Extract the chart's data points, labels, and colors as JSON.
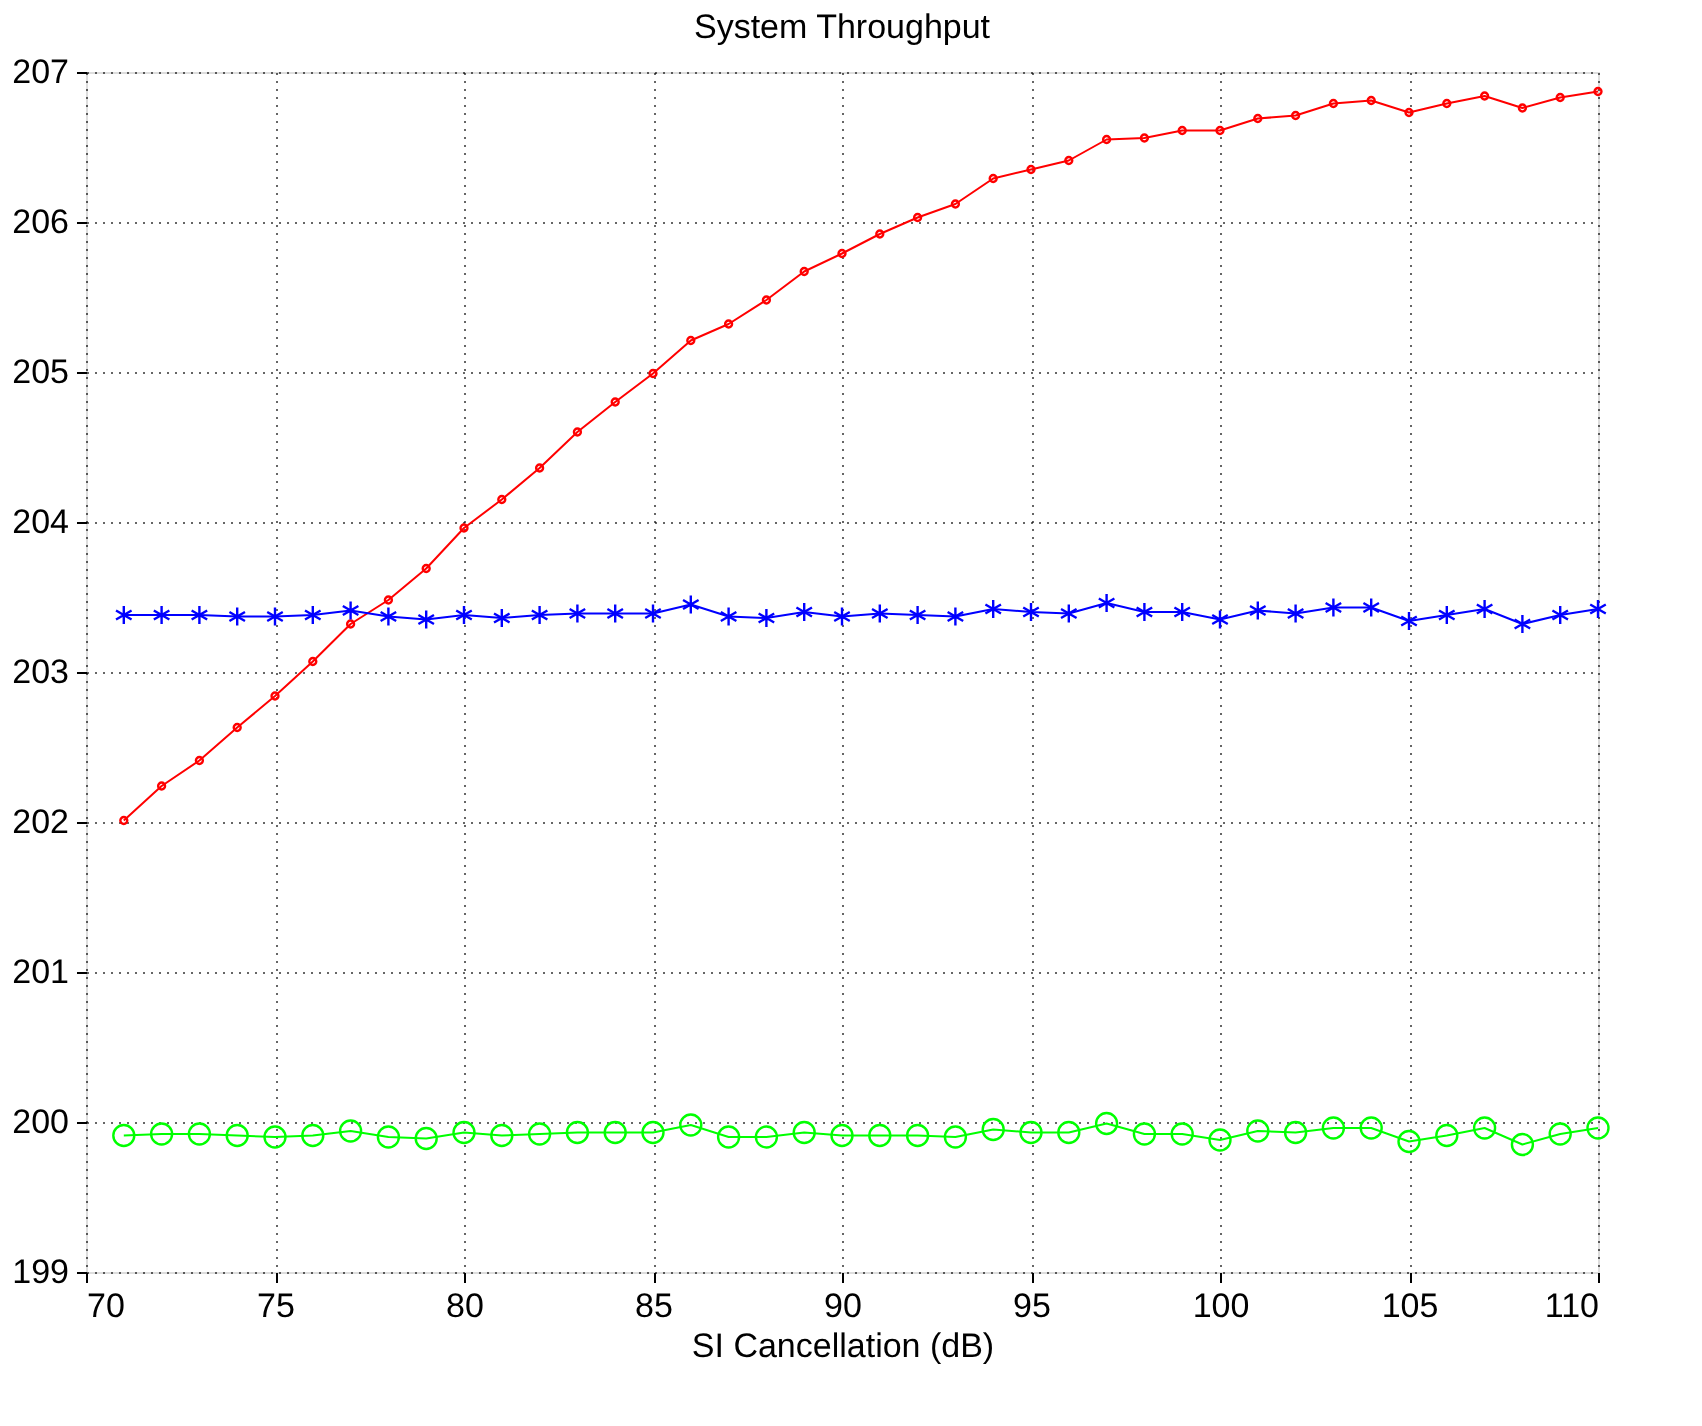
{
  "chart_data": {
    "type": "line",
    "title": "System Throughput",
    "xlabel": "SI Cancellation (dB)",
    "x": [
      71,
      72,
      73,
      74,
      75,
      76,
      77,
      78,
      79,
      80,
      81,
      82,
      83,
      84,
      85,
      86,
      87,
      88,
      89,
      90,
      91,
      92,
      93,
      94,
      95,
      96,
      97,
      98,
      99,
      100,
      101,
      102,
      103,
      104,
      105,
      106,
      107,
      108,
      109,
      110
    ],
    "series": [
      {
        "color": "#ff0000",
        "marker": "circle",
        "values": [
          202.01,
          202.24,
          202.41,
          202.63,
          202.84,
          203.07,
          203.32,
          203.48,
          203.69,
          203.96,
          204.15,
          204.36,
          204.6,
          204.8,
          204.99,
          205.21,
          205.32,
          205.48,
          205.67,
          205.79,
          205.92,
          206.03,
          206.12,
          206.29,
          206.35,
          206.41,
          206.55,
          206.56,
          206.61,
          206.61,
          206.69,
          206.71,
          206.79,
          206.81,
          206.73,
          206.79,
          206.84,
          206.76,
          206.83,
          206.87
        ]
      },
      {
        "color": "#0000ff",
        "marker": "cross",
        "values": [
          203.38,
          203.38,
          203.38,
          203.37,
          203.37,
          203.38,
          203.41,
          203.37,
          203.35,
          203.38,
          203.36,
          203.38,
          203.39,
          203.39,
          203.39,
          203.45,
          203.37,
          203.36,
          203.4,
          203.37,
          203.39,
          203.38,
          203.37,
          203.42,
          203.4,
          203.39,
          203.46,
          203.4,
          203.4,
          203.35,
          203.41,
          203.39,
          203.43,
          203.43,
          203.34,
          203.38,
          203.42,
          203.32,
          203.38,
          203.42
        ]
      },
      {
        "color": "#00ff00",
        "marker": "circle",
        "values": [
          199.91,
          199.92,
          199.92,
          199.91,
          199.9,
          199.91,
          199.94,
          199.9,
          199.89,
          199.93,
          199.91,
          199.92,
          199.93,
          199.93,
          199.93,
          199.98,
          199.9,
          199.9,
          199.93,
          199.91,
          199.91,
          199.91,
          199.9,
          199.95,
          199.93,
          199.93,
          199.99,
          199.92,
          199.92,
          199.88,
          199.94,
          199.93,
          199.96,
          199.96,
          199.87,
          199.91,
          199.96,
          199.85,
          199.92,
          199.96
        ]
      }
    ],
    "xlim": [
      70,
      110
    ],
    "xticks": [
      70,
      75,
      80,
      85,
      90,
      95,
      100,
      105,
      110
    ],
    "ylim": [
      199,
      207
    ],
    "yticks": [
      199,
      200,
      201,
      202,
      203,
      204,
      205,
      206,
      207
    ],
    "grid": true,
    "line_style": "solid"
  }
}
